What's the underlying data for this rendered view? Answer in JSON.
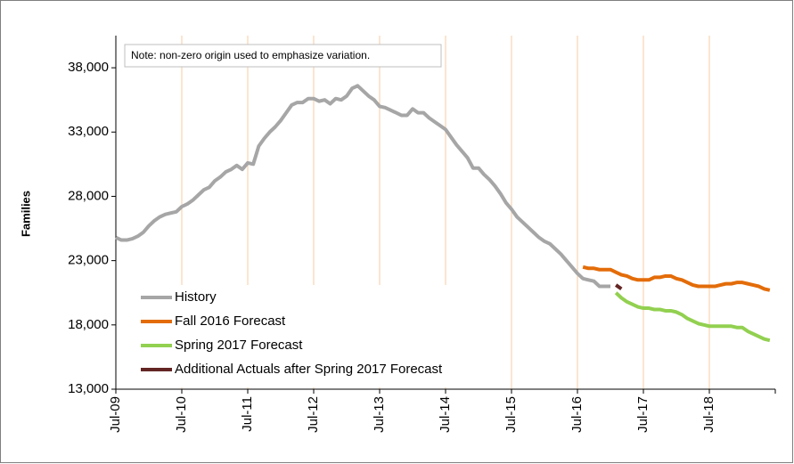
{
  "chart_data": {
    "type": "line",
    "note": "Note: non-zero origin used to emphasize variation.",
    "y_label": "Families",
    "categories": [
      "Jul-09",
      null,
      null,
      null,
      null,
      null,
      null,
      null,
      null,
      null,
      null,
      null,
      "Jul-10",
      null,
      null,
      null,
      null,
      null,
      null,
      null,
      null,
      null,
      null,
      null,
      "Jul-11",
      null,
      null,
      null,
      null,
      null,
      null,
      null,
      null,
      null,
      null,
      null,
      "Jul-12",
      null,
      null,
      null,
      null,
      null,
      null,
      null,
      null,
      null,
      null,
      null,
      "Jul-13",
      null,
      null,
      null,
      null,
      null,
      null,
      null,
      null,
      null,
      null,
      null,
      "Jul-14",
      null,
      null,
      null,
      null,
      null,
      null,
      null,
      null,
      null,
      null,
      null,
      "Jul-15",
      null,
      null,
      null,
      null,
      null,
      null,
      null,
      null,
      null,
      null,
      null,
      "Jul-16",
      null,
      null,
      null,
      null,
      null,
      null,
      null,
      null,
      null,
      null,
      null,
      "Jul-17",
      null,
      null,
      null,
      null,
      null,
      null,
      null,
      null,
      null,
      null,
      null,
      "Jul-18",
      null,
      null,
      null,
      null,
      null,
      null,
      null,
      null,
      null,
      null,
      null
    ],
    "series": [
      {
        "name": "History",
        "color": "#a6a6a6",
        "values": [
          24800,
          24600,
          24600,
          24700,
          24900,
          25200,
          25700,
          26100,
          26400,
          26600,
          26700,
          26800,
          27200,
          27400,
          27700,
          28100,
          28500,
          28700,
          29200,
          29500,
          29900,
          30100,
          30400,
          30100,
          30600,
          30500,
          31900,
          32500,
          33000,
          33400,
          33900,
          34500,
          35100,
          35300,
          35300,
          35600,
          35600,
          35400,
          35500,
          35200,
          35600,
          35500,
          35800,
          36400,
          36600,
          36200,
          35800,
          35500,
          35000,
          34900,
          34700,
          34500,
          34300,
          34300,
          34800,
          34500,
          34500,
          34100,
          33800,
          33500,
          33200,
          32600,
          32000,
          31500,
          31000,
          30200,
          30200,
          29700,
          29300,
          28800,
          28200,
          27500,
          27000,
          26400,
          26000,
          25600,
          25200,
          24800,
          24500,
          24300,
          23900,
          23500,
          23000,
          22500,
          22000,
          21600,
          21500,
          21400,
          21000,
          21000,
          21000,
          null,
          null,
          null,
          null,
          null,
          null,
          null,
          null,
          null,
          null,
          null,
          null,
          null,
          null,
          null,
          null,
          null,
          null,
          null,
          null,
          null,
          null,
          null,
          null,
          null,
          null,
          null,
          null,
          null
        ]
      },
      {
        "name": "Fall 2016 Forecast",
        "color": "#e36c09",
        "values": [
          null,
          null,
          null,
          null,
          null,
          null,
          null,
          null,
          null,
          null,
          null,
          null,
          null,
          null,
          null,
          null,
          null,
          null,
          null,
          null,
          null,
          null,
          null,
          null,
          null,
          null,
          null,
          null,
          null,
          null,
          null,
          null,
          null,
          null,
          null,
          null,
          null,
          null,
          null,
          null,
          null,
          null,
          null,
          null,
          null,
          null,
          null,
          null,
          null,
          null,
          null,
          null,
          null,
          null,
          null,
          null,
          null,
          null,
          null,
          null,
          null,
          null,
          null,
          null,
          null,
          null,
          null,
          null,
          null,
          null,
          null,
          null,
          null,
          null,
          null,
          null,
          null,
          null,
          null,
          null,
          null,
          null,
          null,
          null,
          null,
          22500,
          22400,
          22400,
          22300,
          22300,
          22300,
          22100,
          21900,
          21800,
          21600,
          21500,
          21500,
          21500,
          21700,
          21700,
          21800,
          21800,
          21600,
          21500,
          21300,
          21100,
          21000,
          21000,
          21000,
          21000,
          21100,
          21200,
          21200,
          21300,
          21300,
          21200,
          21100,
          21000,
          20800,
          20700
        ]
      },
      {
        "name": "Spring 2017 Forecast",
        "color": "#92d050",
        "values": [
          null,
          null,
          null,
          null,
          null,
          null,
          null,
          null,
          null,
          null,
          null,
          null,
          null,
          null,
          null,
          null,
          null,
          null,
          null,
          null,
          null,
          null,
          null,
          null,
          null,
          null,
          null,
          null,
          null,
          null,
          null,
          null,
          null,
          null,
          null,
          null,
          null,
          null,
          null,
          null,
          null,
          null,
          null,
          null,
          null,
          null,
          null,
          null,
          null,
          null,
          null,
          null,
          null,
          null,
          null,
          null,
          null,
          null,
          null,
          null,
          null,
          null,
          null,
          null,
          null,
          null,
          null,
          null,
          null,
          null,
          null,
          null,
          null,
          null,
          null,
          null,
          null,
          null,
          null,
          null,
          null,
          null,
          null,
          null,
          null,
          null,
          null,
          null,
          null,
          null,
          null,
          20500,
          20100,
          19800,
          19600,
          19400,
          19300,
          19300,
          19200,
          19200,
          19100,
          19100,
          19000,
          18800,
          18500,
          18300,
          18100,
          18000,
          17900,
          17900,
          17900,
          17900,
          17900,
          17800,
          17800,
          17500,
          17300,
          17100,
          16900,
          16800
        ]
      },
      {
        "name": "Additional Actuals after Spring 2017 Forecast",
        "color": "#632523",
        "values": [
          null,
          null,
          null,
          null,
          null,
          null,
          null,
          null,
          null,
          null,
          null,
          null,
          null,
          null,
          null,
          null,
          null,
          null,
          null,
          null,
          null,
          null,
          null,
          null,
          null,
          null,
          null,
          null,
          null,
          null,
          null,
          null,
          null,
          null,
          null,
          null,
          null,
          null,
          null,
          null,
          null,
          null,
          null,
          null,
          null,
          null,
          null,
          null,
          null,
          null,
          null,
          null,
          null,
          null,
          null,
          null,
          null,
          null,
          null,
          null,
          null,
          null,
          null,
          null,
          null,
          null,
          null,
          null,
          null,
          null,
          null,
          null,
          null,
          null,
          null,
          null,
          null,
          null,
          null,
          null,
          null,
          null,
          null,
          null,
          null,
          null,
          null,
          null,
          null,
          null,
          null,
          21100,
          20800,
          null,
          null,
          null,
          null,
          null,
          null,
          null,
          null,
          null,
          null,
          null,
          null,
          null,
          null,
          null,
          null,
          null,
          null,
          null,
          null,
          null,
          null,
          null,
          null,
          null,
          null,
          null
        ]
      }
    ],
    "ylim": [
      13000,
      40500
    ],
    "yticks": [
      {
        "value": 13000,
        "label": "13,000"
      },
      {
        "value": 18000,
        "label": "18,000"
      },
      {
        "value": 23000,
        "label": "23,000"
      },
      {
        "value": 28000,
        "label": "28,000"
      },
      {
        "value": 33000,
        "label": "33,000"
      },
      {
        "value": 38000,
        "label": "38,000"
      }
    ],
    "grid": true,
    "legend": "lower-left"
  }
}
